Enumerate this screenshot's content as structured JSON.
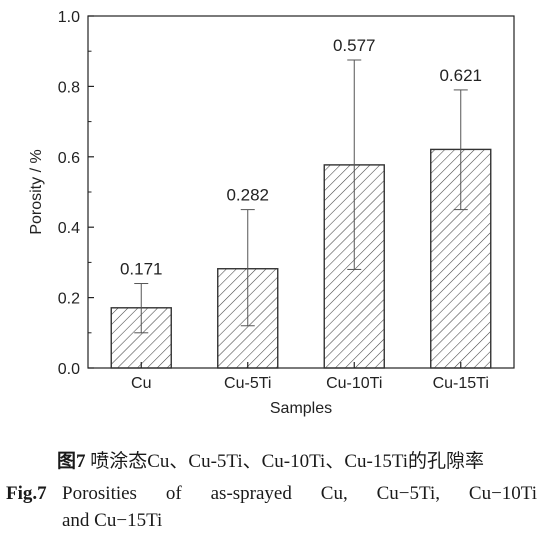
{
  "chart_data": {
    "type": "bar",
    "categories": [
      "Cu",
      "Cu-5Ti",
      "Cu-10Ti",
      "Cu-15Ti"
    ],
    "values": [
      0.171,
      0.282,
      0.577,
      0.621
    ],
    "error_low": [
      0.1,
      0.12,
      0.28,
      0.45
    ],
    "error_high": [
      0.24,
      0.45,
      0.875,
      0.79
    ],
    "data_labels": [
      "0.171",
      "0.282",
      "0.577",
      "0.621"
    ],
    "xlabel": "Samples",
    "ylabel": "Porosity / %",
    "ylim": [
      0.0,
      1.0
    ],
    "yticks": [
      "0.0",
      "0.2",
      "0.4",
      "0.6",
      "0.8",
      "1.0"
    ],
    "bar_fill": "hatched",
    "grid": false,
    "legend": "none"
  },
  "caption": {
    "cn_prefix": "图7",
    "cn_text": "喷涂态Cu、Cu-5Ti、Cu-10Ti、Cu-15Ti的孔隙率",
    "en_prefix": "Fig.7",
    "en_line1": "Porosities of as-sprayed Cu, Cu−5Ti, Cu−10Ti",
    "en_line2": "and Cu−15Ti"
  },
  "colors": {
    "axis": "#222222",
    "bar_stroke": "#333333",
    "hatch": "#444444",
    "error_bar": "#555555"
  }
}
